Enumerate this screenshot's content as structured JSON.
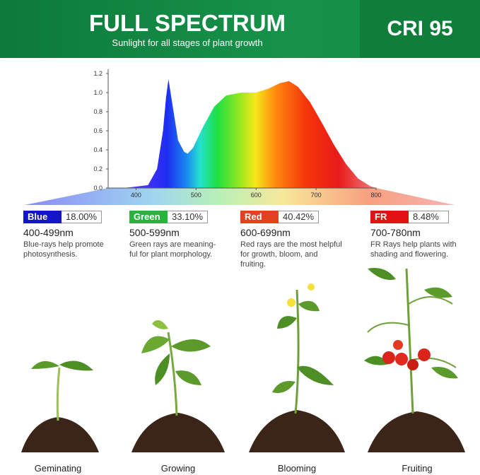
{
  "header": {
    "title": "FULL SPECTRUM",
    "subtitle": "Sunlight for all stages of plant growth",
    "badge": "CRI 95"
  },
  "spectrum": {
    "type": "area",
    "xlim": [
      350,
      800
    ],
    "ylim": [
      0,
      1.2
    ],
    "xticks": [
      400,
      500,
      600,
      700,
      800
    ],
    "yticks": [
      {
        "value": 0,
        "label": "0.0"
      },
      0.2,
      0.4,
      0.6,
      0.8,
      {
        "value": 1,
        "label": "1.0"
      },
      1.2
    ],
    "x": [
      380,
      420,
      435,
      445,
      450,
      454,
      460,
      470,
      480,
      486,
      495,
      510,
      530,
      550,
      575,
      600,
      620,
      640,
      655,
      670,
      690,
      710,
      730,
      750,
      770,
      790,
      800
    ],
    "y": [
      0,
      0.03,
      0.2,
      0.6,
      0.95,
      1.14,
      0.9,
      0.5,
      0.38,
      0.36,
      0.42,
      0.62,
      0.85,
      0.97,
      1.0,
      1.0,
      1.04,
      1.1,
      1.12,
      1.06,
      0.9,
      0.68,
      0.45,
      0.25,
      0.1,
      0.02,
      0
    ]
  },
  "bands": [
    {
      "name": "Blue",
      "share": "18.00%",
      "range": "400-499nm",
      "lines": [
        "Blue-rays help promote",
        "photosynthesis."
      ],
      "color": "#1414c8"
    },
    {
      "name": "Green",
      "share": "33.10%",
      "range": "500-599nm",
      "lines": [
        "Green rays are meaning-",
        "ful for plant morphology."
      ],
      "color": "#27b33c"
    },
    {
      "name": "Red",
      "share": "40.42%",
      "range": "600-699nm",
      "lines": [
        "Red rays are the most helpful",
        "for growth, bloom, and fruiting."
      ],
      "color": "#e2431e"
    },
    {
      "name": "FR",
      "share": "8.48%",
      "range": "700-780nm",
      "lines": [
        "FR Rays help plants with",
        "shading and flowering."
      ],
      "color": "#e01212"
    }
  ],
  "stages": [
    "Geminating",
    "Growing",
    "Blooming",
    "Fruiting"
  ]
}
